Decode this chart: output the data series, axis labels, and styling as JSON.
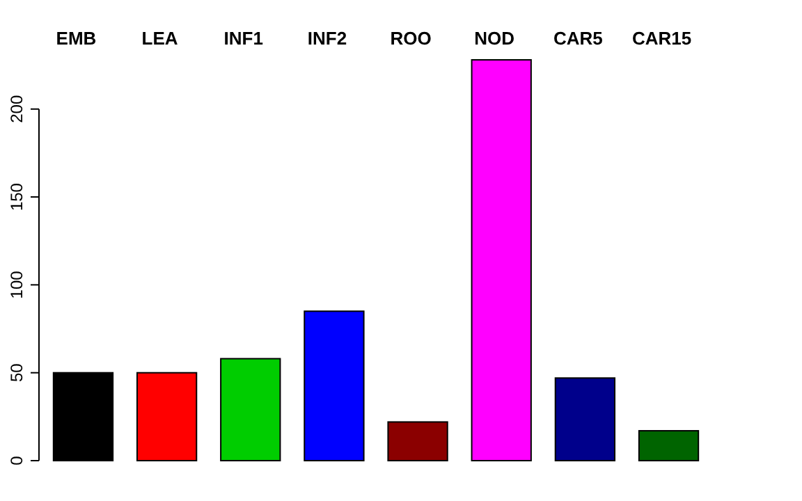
{
  "chart_data": {
    "type": "bar",
    "categories": [
      "EMB",
      "LEA",
      "INF1",
      "INF2",
      "ROO",
      "NOD",
      "CAR5",
      "CAR15"
    ],
    "values": [
      50,
      50,
      58,
      85,
      22,
      228,
      47,
      17
    ],
    "colors": [
      "#000000",
      "#ff0000",
      "#00cd00",
      "#0000ff",
      "#8b0000",
      "#ff00ff",
      "#00008b",
      "#006400"
    ],
    "ylim": [
      0,
      228
    ],
    "yticks": [
      0,
      50,
      100,
      150,
      200
    ],
    "grid": false
  }
}
